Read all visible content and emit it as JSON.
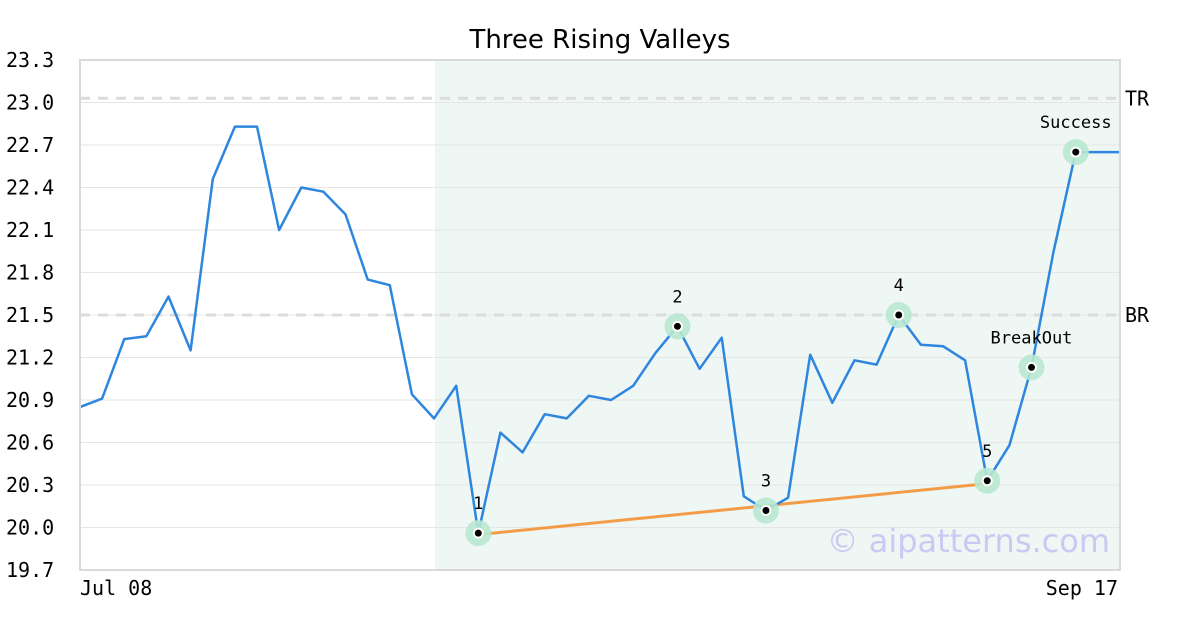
{
  "chart_data": {
    "type": "line",
    "title": "Three Rising Valleys",
    "ylim": [
      19.7,
      23.3
    ],
    "y_ticks": [
      "23.3",
      "23.0",
      "22.7",
      "22.4",
      "22.1",
      "21.8",
      "21.5",
      "21.2",
      "20.9",
      "20.6",
      "20.3",
      "20.0",
      "19.7"
    ],
    "x_labels": [
      "Jul 08",
      "Sep 17"
    ],
    "series": [
      {
        "values": [
          20.85,
          20.91,
          21.33,
          21.35,
          21.63,
          21.25,
          22.46,
          22.83,
          22.83,
          22.1,
          22.4,
          22.37,
          22.21,
          21.75,
          21.71,
          20.94,
          20.77,
          21.0,
          19.96,
          20.67,
          20.53,
          20.8,
          20.77,
          20.93,
          20.9,
          21.0,
          21.23,
          21.42,
          21.12,
          21.34,
          20.22,
          20.12,
          20.21,
          21.22,
          20.88,
          21.18,
          21.15,
          21.5,
          21.29,
          21.28,
          21.18,
          20.33,
          20.58,
          21.13,
          21.95,
          22.65,
          22.65,
          22.65
        ],
        "color": "#2e86de"
      }
    ],
    "reference_lines": [
      {
        "label": "TR",
        "y": 23.03
      },
      {
        "label": "BR",
        "y": 21.5
      }
    ],
    "pattern_region": {
      "from_index": 16,
      "to_index": 47,
      "color": "#eef7f3"
    },
    "trendline": {
      "from_index": 18,
      "to_index": 41,
      "y_from": 19.95,
      "y_to": 20.31,
      "color": "#f39c48"
    },
    "markers": [
      {
        "label": "1",
        "index": 18,
        "y": 19.96,
        "label_pos": "above"
      },
      {
        "label": "2",
        "index": 27,
        "y": 21.42,
        "label_pos": "above"
      },
      {
        "label": "3",
        "index": 31,
        "y": 20.12,
        "label_pos": "above"
      },
      {
        "label": "4",
        "index": 37,
        "y": 21.5,
        "label_pos": "above"
      },
      {
        "label": "5",
        "index": 41,
        "y": 20.33,
        "label_pos": "above"
      },
      {
        "label": "BreakOut",
        "index": 43,
        "y": 21.13,
        "label_pos": "above"
      },
      {
        "label": "Success",
        "index": 45,
        "y": 22.65,
        "label_pos": "above"
      }
    ],
    "grid": true,
    "watermark": "© aipatterns.com"
  }
}
